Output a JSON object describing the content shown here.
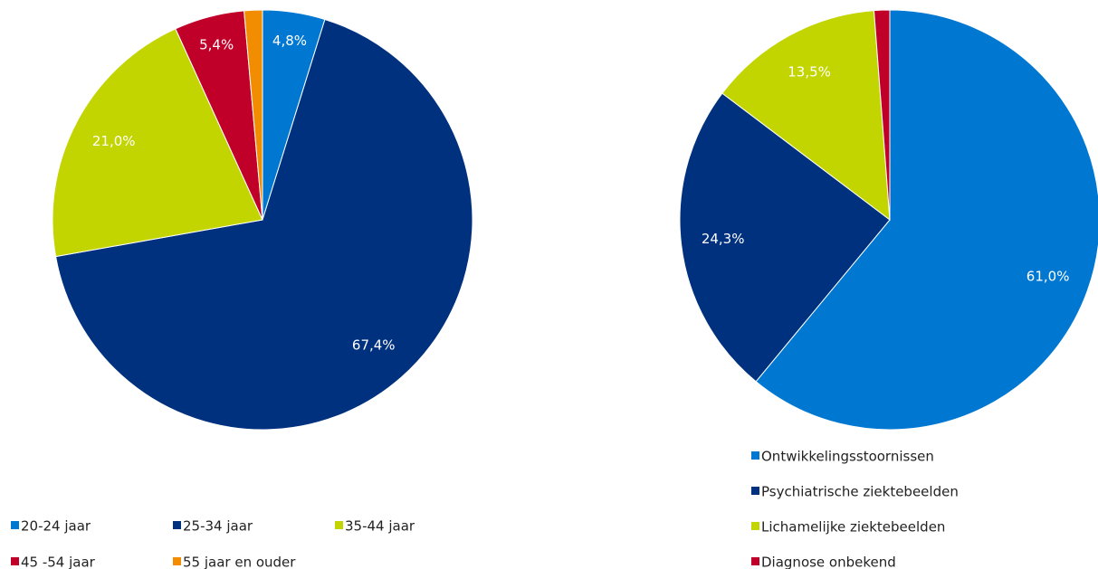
{
  "chart_data": [
    {
      "type": "pie",
      "categories": [
        "20-24 jaar",
        "25-34 jaar",
        "35-44 jaar",
        "45 -54 jaar",
        "55 jaar en ouder"
      ],
      "values": [
        4.8,
        67.4,
        21.0,
        5.4,
        1.4
      ],
      "value_labels": [
        "4,8%",
        "67,4%",
        "21,0%",
        "5,4%",
        null
      ],
      "colors": [
        "#0078d2",
        "#00317f",
        "#c3d500",
        "#c1002a",
        "#f28c00"
      ],
      "legend": "bottom-left"
    },
    {
      "type": "pie",
      "categories": [
        "Ontwikkelingsstoornissen",
        "Psychiatrische ziektebeelden",
        "Lichamelijke ziektebeelden",
        "Diagnose onbekend"
      ],
      "values": [
        61.0,
        24.3,
        13.5,
        1.2
      ],
      "value_labels": [
        "61,0%",
        "24,3%",
        "13,5%",
        null
      ],
      "colors": [
        "#0078d2",
        "#00317f",
        "#c3d500",
        "#c1002a"
      ],
      "legend": "bottom-right"
    }
  ]
}
